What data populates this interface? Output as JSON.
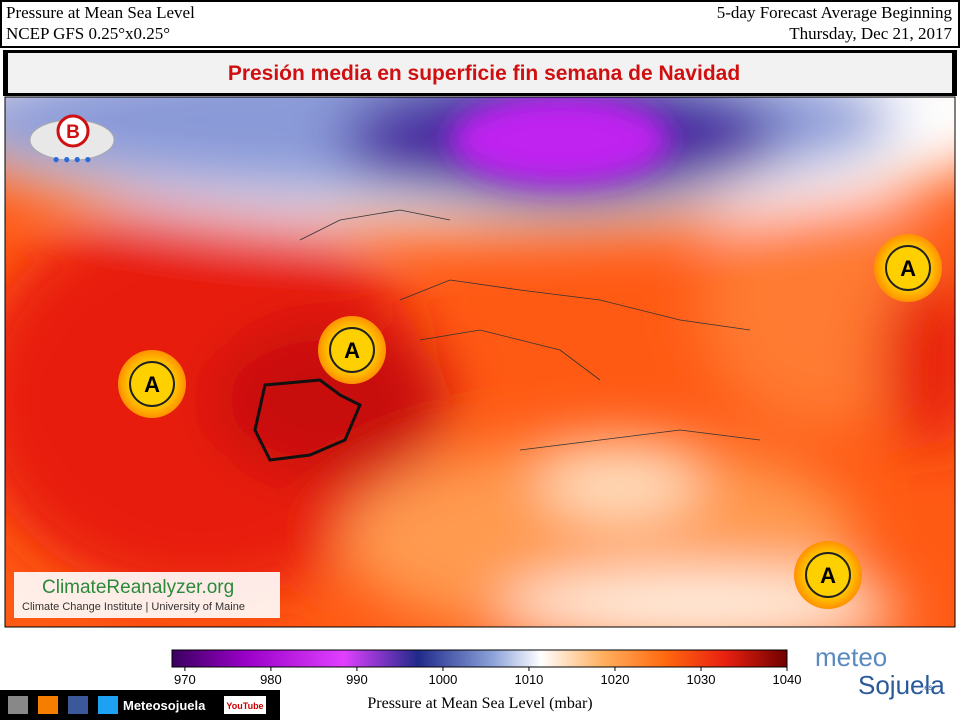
{
  "header": {
    "left_title": "Pressure at Mean Sea Level",
    "left_subtitle": "NCEP GFS 0.25°x0.25°",
    "right_title": "5-day Forecast Average Beginning",
    "right_subtitle": "Thursday, Dec 21, 2017"
  },
  "banner": {
    "title": "Presión media en superficie fin semana de Navidad"
  },
  "map": {
    "symbols": [
      {
        "label": "B"
      },
      {
        "label": "A"
      },
      {
        "label": "A"
      },
      {
        "label": "A"
      },
      {
        "label": "A"
      }
    ]
  },
  "credit": {
    "name": "ClimateReanalyzer.org",
    "institution": "Climate Change Institute | University of Maine"
  },
  "colorbar": {
    "lim": [
      968.5,
      1040
    ],
    "ticks": [
      970,
      980,
      990,
      1000,
      1010,
      1020,
      1030,
      1040
    ],
    "label": "Pressure at Mean Sea Level (mbar)"
  },
  "footer": {
    "social": "Meteosojuela",
    "youtube": "YouTube",
    "brand_top": "meteo",
    "brand_bottom": "Sojuela",
    "brand_suffix": ".es"
  }
}
